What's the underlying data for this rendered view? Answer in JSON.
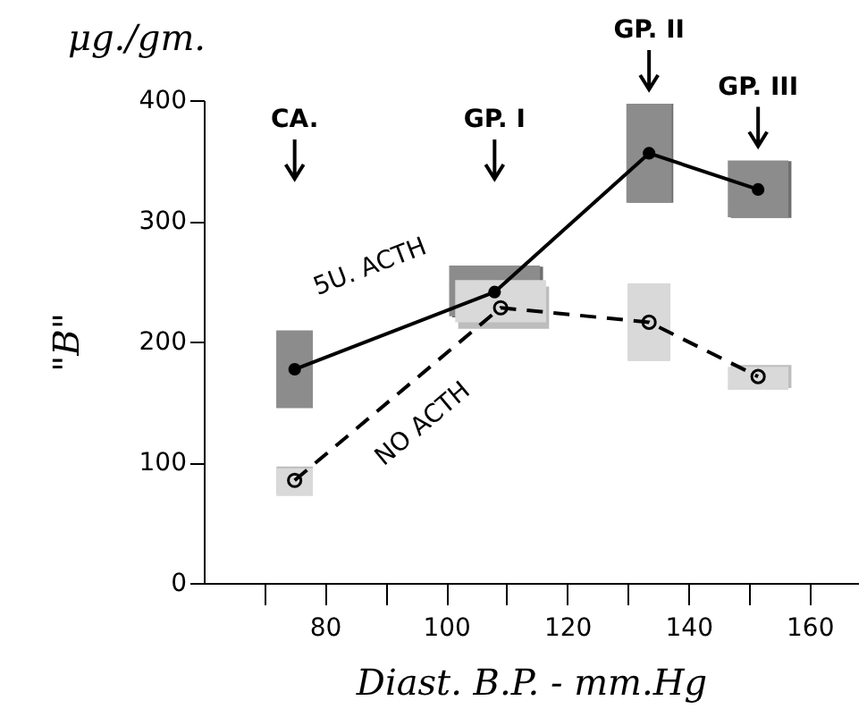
{
  "chart_data": {
    "type": "line",
    "title": "μg./gm.",
    "xlabel": "Diast. B.P. - mm.Hg",
    "ylabel": "\"B\"",
    "xlim": [
      60,
      168
    ],
    "xticks": [
      {
        "value": 70,
        "label": null
      },
      80,
      {
        "value": 90,
        "label": null
      },
      100,
      {
        "value": 110,
        "label": null
      },
      120,
      {
        "value": 130,
        "label": null
      },
      140,
      {
        "value": 150,
        "label": null
      },
      160
    ],
    "ylim": [
      0,
      400
    ],
    "yticks": [
      0,
      100,
      200,
      300,
      400
    ],
    "grid": false,
    "legend": false,
    "marker": "circle",
    "series": [
      {
        "name": "5U. ACTH",
        "color": "#000000",
        "line_style": "solid",
        "x": [
          75,
          108,
          133.5,
          151.5
        ],
        "values": [
          177,
          241,
          356,
          326
        ],
        "errors": [
          [
            145,
            209
          ],
          [
            221,
            263
          ],
          [
            315,
            397
          ],
          [
            303,
            350
          ]
        ],
        "xerrors": [
          [
            72,
            78
          ],
          [
            101,
            116
          ],
          [
            130,
            137.5
          ],
          [
            147,
            157
          ]
        ]
      },
      {
        "name": "NO ACTH",
        "color": "#000000",
        "line_style": "dashed",
        "x": [
          75,
          109,
          133.5,
          151.5
        ],
        "values": [
          85,
          228,
          216,
          171
        ],
        "errors": [
          [
            72,
            95
          ],
          [
            216,
            251
          ],
          [
            184,
            248
          ],
          [
            160,
            179
          ]
        ],
        "xerrors": [
          [
            72,
            78
          ],
          [
            102,
            117
          ],
          [
            130,
            137
          ],
          [
            147,
            157
          ]
        ]
      }
    ],
    "annotations": [
      "CA.",
      "GP. I",
      "GP. II",
      "GP. III"
    ]
  }
}
